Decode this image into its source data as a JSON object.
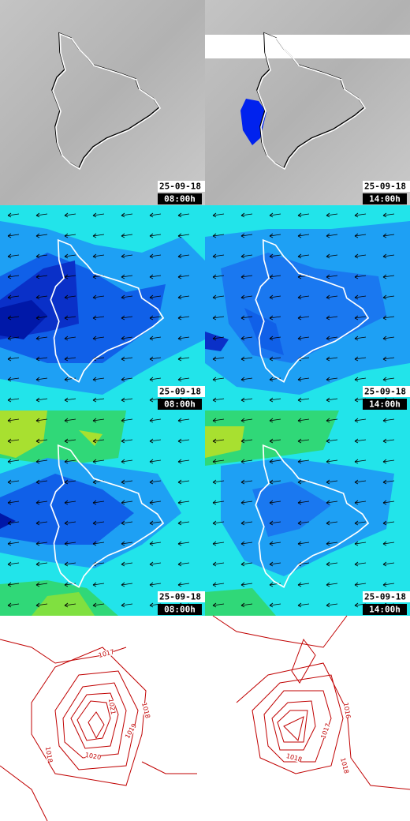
{
  "panels": [
    {
      "date": "25-09-18",
      "time": "08:00h"
    },
    {
      "date": "25-09-18",
      "time": "14:00h"
    },
    {
      "date": "25-09-18",
      "time": "08:00h"
    },
    {
      "date": "25-09-18",
      "time": "14:00h"
    },
    {
      "date": "25-09-18",
      "time": "08:00h"
    },
    {
      "date": "25-09-18",
      "time": "14:00h"
    }
  ],
  "pressure_maps": [
    {
      "contour_labels": [
        "1017",
        "1021",
        "1018",
        "1019",
        "1020",
        "1018"
      ]
    },
    {
      "contour_labels": [
        "1016",
        "1017",
        "1018",
        "1018"
      ]
    }
  ]
}
